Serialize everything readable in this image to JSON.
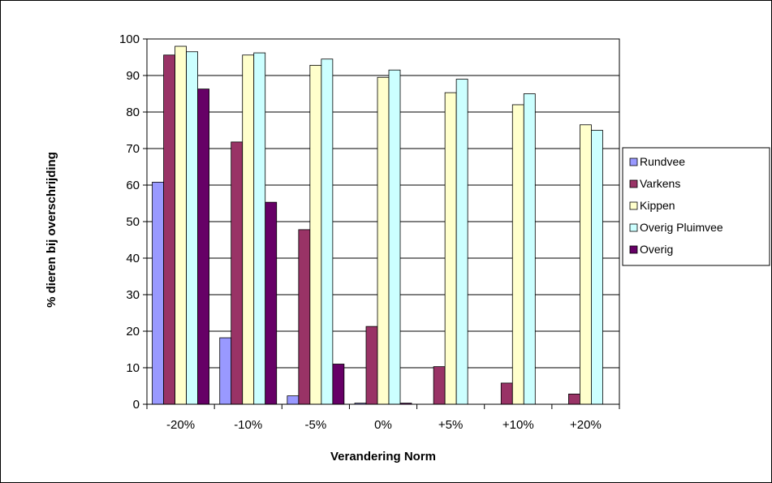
{
  "chart_data": {
    "type": "bar",
    "title": "",
    "xlabel": "Verandering Norm",
    "ylabel": "% dieren bij overschrijding",
    "categories": [
      "-20%",
      "-10%",
      "-5%",
      "0%",
      "+5%",
      "+10%",
      "+20%"
    ],
    "ylim": [
      0,
      100
    ],
    "yticks": [
      0,
      10,
      20,
      30,
      40,
      50,
      60,
      70,
      80,
      90,
      100
    ],
    "grid": true,
    "legend_position": "right",
    "series": [
      {
        "name": "Rundvee",
        "color": "#9999FF",
        "values": [
          60.8,
          18.2,
          2.3,
          0.3,
          0,
          0,
          0
        ]
      },
      {
        "name": "Varkens",
        "color": "#993366",
        "values": [
          95.6,
          71.8,
          47.8,
          21.3,
          10.3,
          5.8,
          2.8
        ]
      },
      {
        "name": "Kippen",
        "color": "#FFFFCC",
        "values": [
          98.0,
          95.6,
          92.8,
          89.5,
          85.3,
          82.0,
          76.5
        ]
      },
      {
        "name": "Overig Pluimvee",
        "color": "#CCFFFF",
        "values": [
          96.5,
          96.2,
          94.5,
          91.5,
          89.0,
          85.0,
          75.0
        ]
      },
      {
        "name": "Overig",
        "color": "#660066",
        "values": [
          86.3,
          55.3,
          11.0,
          0.3,
          0,
          0,
          0
        ]
      }
    ]
  }
}
